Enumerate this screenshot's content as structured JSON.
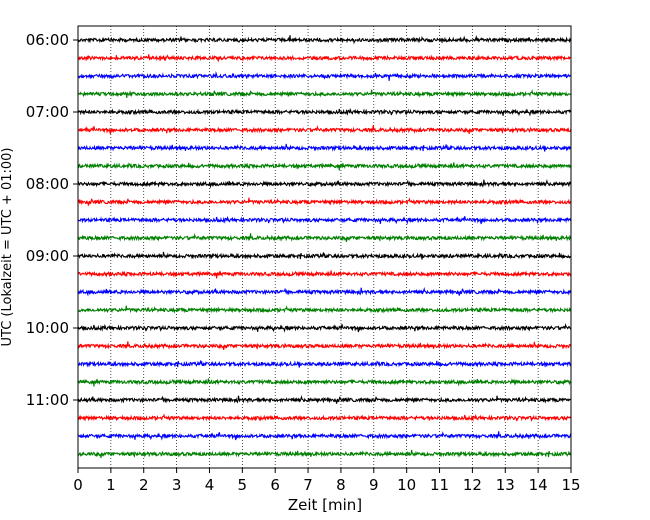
{
  "chart_data": {
    "type": "line",
    "title": "",
    "xlabel": "Zeit  [min]",
    "ylabel": "UTC (Lokalzeit = UTC + 01:00)",
    "xlim": [
      0,
      15
    ],
    "x_ticks": [
      "0",
      "1",
      "2",
      "3",
      "4",
      "5",
      "6",
      "7",
      "8",
      "9",
      "10",
      "11",
      "12",
      "13",
      "14",
      "15"
    ],
    "y_ticks": [
      "06:00",
      "07:00",
      "08:00",
      "09:00",
      "10:00",
      "11:00"
    ],
    "grid": "vertical dotted lines at each minute",
    "trace_interval_min": 15,
    "traces": [
      {
        "start": "06:00",
        "color": "#000000"
      },
      {
        "start": "06:15",
        "color": "#ff0000"
      },
      {
        "start": "06:30",
        "color": "#0000ff"
      },
      {
        "start": "06:45",
        "color": "#008000"
      },
      {
        "start": "07:00",
        "color": "#000000"
      },
      {
        "start": "07:15",
        "color": "#ff0000"
      },
      {
        "start": "07:30",
        "color": "#0000ff"
      },
      {
        "start": "07:45",
        "color": "#008000"
      },
      {
        "start": "08:00",
        "color": "#000000"
      },
      {
        "start": "08:15",
        "color": "#ff0000"
      },
      {
        "start": "08:30",
        "color": "#0000ff"
      },
      {
        "start": "08:45",
        "color": "#008000"
      },
      {
        "start": "09:00",
        "color": "#000000"
      },
      {
        "start": "09:15",
        "color": "#ff0000"
      },
      {
        "start": "09:30",
        "color": "#0000ff"
      },
      {
        "start": "09:45",
        "color": "#008000"
      },
      {
        "start": "10:00",
        "color": "#000000"
      },
      {
        "start": "10:15",
        "color": "#ff0000"
      },
      {
        "start": "10:30",
        "color": "#0000ff"
      },
      {
        "start": "10:45",
        "color": "#008000"
      },
      {
        "start": "11:00",
        "color": "#000000"
      },
      {
        "start": "11:15",
        "color": "#ff0000"
      },
      {
        "start": "11:30",
        "color": "#0000ff"
      },
      {
        "start": "11:45",
        "color": "#008000"
      }
    ]
  }
}
